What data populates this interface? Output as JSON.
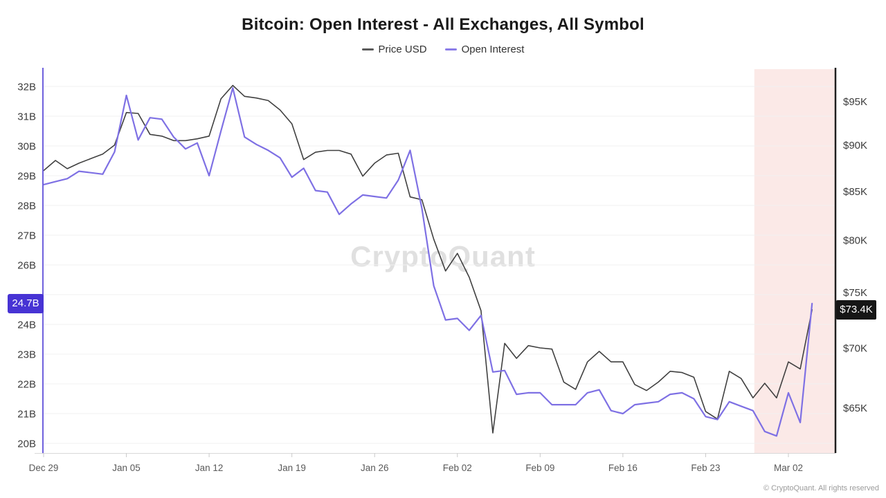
{
  "title": "Bitcoin: Open Interest - All Exchanges, All Symbol",
  "legend": [
    {
      "label": "Price USD",
      "color": "#5a5a5a"
    },
    {
      "label": "Open Interest",
      "color": "#8a7ce8"
    }
  ],
  "watermark": "CryptoQuant",
  "copyright": "© CryptoQuant. All rights reserved",
  "badges": {
    "left": {
      "text": "24.7B",
      "value": 24.7,
      "color": "#4733d4"
    },
    "right": {
      "text": "$73.4K",
      "value": 73.4,
      "color": "#161616"
    }
  },
  "chart_data": {
    "type": "line",
    "title": "Bitcoin: Open Interest - All Exchanges, All Symbol",
    "x": [
      "Dec 29",
      "Dec 30",
      "Dec 31",
      "Jan 1",
      "Jan 2",
      "Jan 3",
      "Jan 4",
      "Jan 5",
      "Jan 6",
      "Jan 7",
      "Jan 8",
      "Jan 9",
      "Jan 10",
      "Jan 11",
      "Jan 12",
      "Jan 13",
      "Jan 14",
      "Jan 15",
      "Jan 16",
      "Jan 17",
      "Jan 18",
      "Jan 19",
      "Jan 20",
      "Jan 21",
      "Jan 22",
      "Jan 23",
      "Jan 24",
      "Jan 25",
      "Jan 26",
      "Jan 27",
      "Jan 28",
      "Jan 29",
      "Jan 30",
      "Jan 31",
      "Feb 1",
      "Feb 2",
      "Feb 3",
      "Feb 4",
      "Feb 5",
      "Feb 6",
      "Feb 7",
      "Feb 8",
      "Feb 9",
      "Feb 10",
      "Feb 11",
      "Feb 12",
      "Feb 13",
      "Feb 14",
      "Feb 15",
      "Feb 16",
      "Feb 17",
      "Feb 18",
      "Feb 19",
      "Feb 20",
      "Feb 21",
      "Feb 22",
      "Feb 23",
      "Feb 24",
      "Feb 25",
      "Feb 26",
      "Feb 27",
      "Feb 28",
      "Mar 1",
      "Mar 2",
      "Mar 3",
      "Mar 4"
    ],
    "x_ticks": [
      {
        "label": "Dec 29",
        "index": 0
      },
      {
        "label": "Jan 05",
        "index": 7
      },
      {
        "label": "Jan 12",
        "index": 14
      },
      {
        "label": "Jan 19",
        "index": 21
      },
      {
        "label": "Jan 26",
        "index": 28
      },
      {
        "label": "Feb 02",
        "index": 35
      },
      {
        "label": "Feb 09",
        "index": 42
      },
      {
        "label": "Feb 16",
        "index": 49
      },
      {
        "label": "Feb 23",
        "index": 56
      },
      {
        "label": "Mar 02",
        "index": 63
      }
    ],
    "left_axis": {
      "name": "Open Interest",
      "unit": "B",
      "scale": "linear",
      "grid_values": [
        20,
        21,
        22,
        23,
        24,
        25,
        26,
        27,
        28,
        29,
        30,
        31,
        32
      ],
      "ticks": [
        {
          "label": "32B",
          "value": 32
        },
        {
          "label": "31B",
          "value": 31
        },
        {
          "label": "30B",
          "value": 30
        },
        {
          "label": "29B",
          "value": 29
        },
        {
          "label": "28B",
          "value": 28
        },
        {
          "label": "27B",
          "value": 27
        },
        {
          "label": "26B",
          "value": 26
        },
        {
          "label": "24B",
          "value": 24
        },
        {
          "label": "23B",
          "value": 23
        },
        {
          "label": "22B",
          "value": 22
        },
        {
          "label": "21B",
          "value": 21
        },
        {
          "label": "20B",
          "value": 20
        }
      ],
      "axis_color": "#6f61dd"
    },
    "right_axis": {
      "name": "Price USD",
      "unit": "$K",
      "scale": "log",
      "ticks": [
        {
          "label": "$95K",
          "value": 95
        },
        {
          "label": "$90K",
          "value": 90
        },
        {
          "label": "$85K",
          "value": 85
        },
        {
          "label": "$80K",
          "value": 80
        },
        {
          "label": "$75K",
          "value": 75
        },
        {
          "label": "$70K",
          "value": 70
        },
        {
          "label": "$65K",
          "value": 65
        }
      ],
      "axis_color": "#1f1f1f"
    },
    "series": [
      {
        "name": "Price USD",
        "axis": "right",
        "color": "#404040",
        "width": 1.6,
        "values": [
          87.2,
          88.3,
          87.4,
          88.0,
          88.5,
          89.0,
          90.0,
          93.7,
          93.6,
          91.2,
          91.0,
          90.5,
          90.5,
          90.7,
          91.0,
          95.3,
          96.9,
          95.6,
          95.4,
          95.1,
          94.0,
          92.4,
          88.4,
          89.2,
          89.4,
          89.4,
          89.0,
          86.6,
          88.0,
          88.9,
          89.1,
          84.4,
          84.1,
          80.1,
          77.0,
          78.7,
          76.4,
          73.3,
          63.0,
          70.4,
          69.1,
          70.2,
          70.0,
          69.9,
          67.1,
          66.5,
          68.8,
          69.7,
          68.8,
          68.8,
          66.9,
          66.4,
          67.1,
          68.0,
          67.9,
          67.5,
          64.7,
          64.1,
          68.0,
          67.4,
          65.8,
          67.0,
          65.8,
          68.8,
          68.2,
          73.4
        ]
      },
      {
        "name": "Open Interest",
        "axis": "left",
        "color": "#7e70e4",
        "width": 2.2,
        "values": [
          28.7,
          28.8,
          28.9,
          29.15,
          29.1,
          29.05,
          29.8,
          31.7,
          30.2,
          30.95,
          30.9,
          30.3,
          29.9,
          30.1,
          29.0,
          30.5,
          31.95,
          30.3,
          30.05,
          29.85,
          29.6,
          28.95,
          29.25,
          28.5,
          28.45,
          27.7,
          28.05,
          28.35,
          28.3,
          28.25,
          28.85,
          29.85,
          27.9,
          25.3,
          24.15,
          24.2,
          23.8,
          24.3,
          22.4,
          22.45,
          21.65,
          21.7,
          21.7,
          21.3,
          21.3,
          21.3,
          21.7,
          21.8,
          21.1,
          21.0,
          21.3,
          21.35,
          21.4,
          21.65,
          21.7,
          21.5,
          20.9,
          20.8,
          21.4,
          21.25,
          21.1,
          20.4,
          20.25,
          21.7,
          20.7,
          24.7
        ]
      }
    ],
    "highlight_region": {
      "start_date": "Feb 27",
      "start_index": 60,
      "to": "right_edge",
      "color": "#fbe9e7"
    },
    "grid_color": "#f1f1f1",
    "legend_position": "top-center"
  }
}
